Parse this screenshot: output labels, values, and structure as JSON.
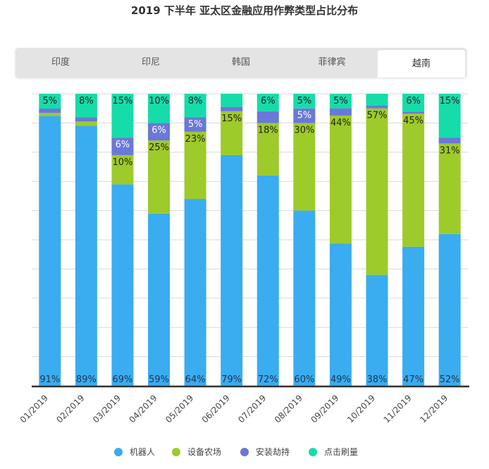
{
  "title": "2019 下半年 亚太区金融应用作弊类型占比分布",
  "tabs": [
    {
      "label": "印度",
      "active": false
    },
    {
      "label": "印尼",
      "active": false
    },
    {
      "label": "韩国",
      "active": false
    },
    {
      "label": "菲律宾",
      "active": false
    },
    {
      "label": "越南",
      "active": true
    }
  ],
  "chart_data": {
    "type": "bar",
    "stacked": true,
    "categories": [
      "01/2019",
      "02/2019",
      "03/2019",
      "04/2019",
      "05/2019",
      "06/2019",
      "07/2019",
      "08/2019",
      "09/2019",
      "10/2019",
      "11/2019",
      "12/2019"
    ],
    "ylim": [
      0,
      100
    ],
    "grid": true,
    "legend_position": "bottom",
    "series": [
      {
        "name": "机器人",
        "color": "#3aacf0",
        "values": [
          91,
          89,
          69,
          59,
          64,
          79,
          72,
          60,
          49,
          38,
          47,
          52
        ],
        "labels": [
          "91%",
          "89%",
          "69%",
          "59%",
          "64%",
          "79%",
          "72%",
          "60%",
          "49%",
          "38%",
          "47%",
          "52%"
        ]
      },
      {
        "name": "设备农场",
        "color": "#9dcb2a",
        "values": [
          1,
          1.5,
          10,
          25,
          23,
          15,
          18,
          30,
          44,
          57,
          45,
          31
        ],
        "labels": [
          "",
          "",
          "10%",
          "25%",
          "23%",
          "15%",
          "18%",
          "30%",
          "44%",
          "57%",
          "45%",
          "31%"
        ]
      },
      {
        "name": "安装劫持",
        "color": "#6a78d8",
        "values": [
          1.5,
          1.5,
          6,
          6,
          5,
          1.5,
          4,
          5,
          2.5,
          1,
          0.7,
          2
        ],
        "labels": [
          "",
          "",
          "6%",
          "6%",
          "5%",
          "",
          "",
          "5%",
          "",
          "",
          "",
          ""
        ]
      },
      {
        "name": "点击刷量",
        "color": "#16dcaa",
        "values": [
          5,
          8,
          15,
          10,
          8,
          4.5,
          6,
          5,
          5,
          4,
          6,
          15
        ],
        "labels": [
          "5%",
          "8%",
          "15%",
          "10%",
          "8%",
          "",
          "6%",
          "5%",
          "5%",
          "",
          "6%",
          "15%"
        ]
      }
    ]
  },
  "legend": [
    {
      "label": "机器人",
      "color": "#3aacf0"
    },
    {
      "label": "设备农场",
      "color": "#9dcb2a"
    },
    {
      "label": "安装劫持",
      "color": "#6a78d8"
    },
    {
      "label": "点击刷量",
      "color": "#16dcaa"
    }
  ]
}
